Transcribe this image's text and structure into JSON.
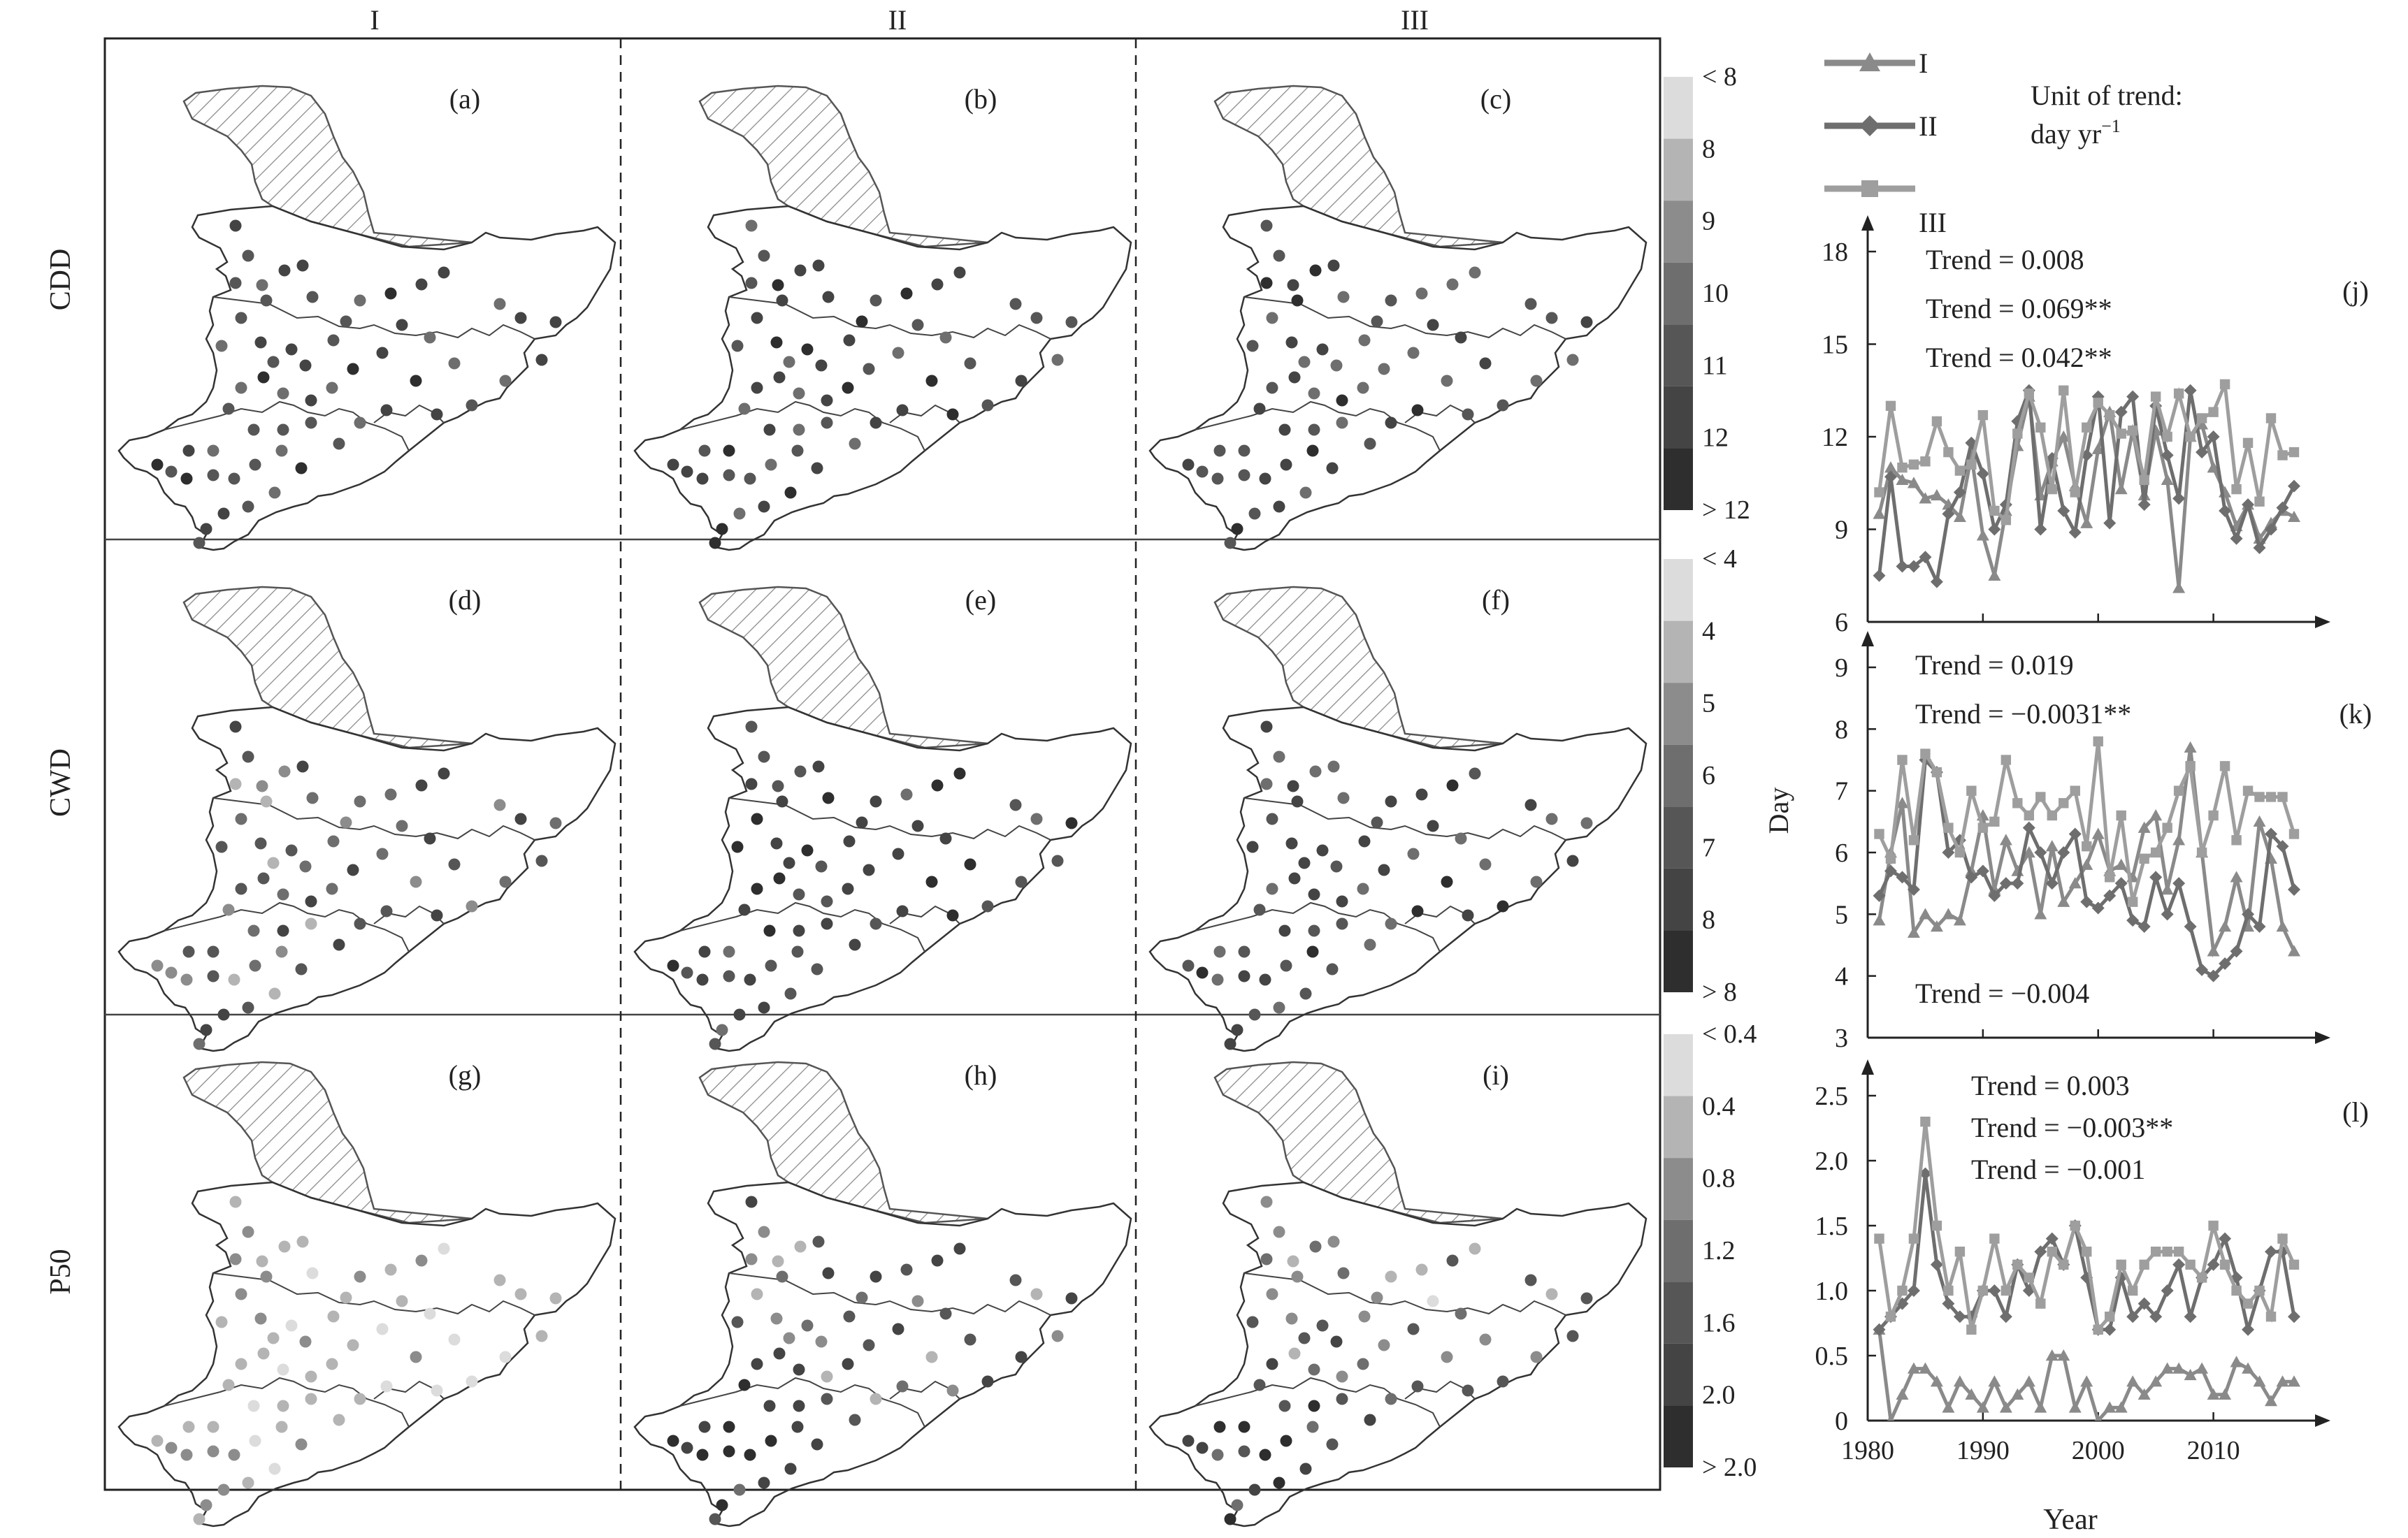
{
  "columns": [
    "I",
    "II",
    "III"
  ],
  "rows": [
    "CDD",
    "CWD",
    "P50"
  ],
  "panel_labels": [
    "(a)",
    "(b)",
    "(c)",
    "(d)",
    "(e)",
    "(f)",
    "(g)",
    "(h)",
    "(i)"
  ],
  "legends": [
    {
      "labels": [
        "< 8",
        "8",
        "9",
        "10",
        "11",
        "12",
        "> 12"
      ],
      "colors": [
        "#dcdcdc",
        "#b4b4b4",
        "#8c8c8c",
        "#6e6e6e",
        "#565656",
        "#444444",
        "#2e2e2e"
      ]
    },
    {
      "labels": [
        "< 4",
        "4",
        "5",
        "6",
        "7",
        "8",
        "> 8"
      ],
      "colors": [
        "#dcdcdc",
        "#b4b4b4",
        "#8c8c8c",
        "#6e6e6e",
        "#565656",
        "#444444",
        "#2e2e2e"
      ]
    },
    {
      "labels": [
        "< 0.4",
        "0.4",
        "0.8",
        "1.2",
        "1.6",
        "2.0",
        "> 2.0"
      ],
      "colors": [
        "#dcdcdc",
        "#b4b4b4",
        "#8c8c8c",
        "#6e6e6e",
        "#565656",
        "#444444",
        "#2e2e2e"
      ]
    }
  ],
  "series_legend": {
    "entries": [
      {
        "name": "I",
        "marker": "triangle",
        "color": "#8a8a8a"
      },
      {
        "name": "II",
        "marker": "diamond",
        "color": "#6e6e6e"
      },
      {
        "name": "III",
        "marker": "square",
        "color": "#9e9e9e"
      }
    ],
    "unit_line1": "Unit of trend:",
    "unit_line2": "day yr",
    "unit_sup": "−1"
  },
  "y_axis_label": "Day",
  "x_axis_label": "Year",
  "chart_data": [
    {
      "type": "line",
      "panel": "(j)",
      "x": [
        1981,
        1982,
        1983,
        1984,
        1985,
        1986,
        1987,
        1988,
        1989,
        1990,
        1991,
        1992,
        1993,
        1994,
        1995,
        1996,
        1997,
        1998,
        1999,
        2000,
        2001,
        2002,
        2003,
        2004,
        2005,
        2006,
        2007,
        2008,
        2009,
        2010,
        2011,
        2012,
        2013,
        2014,
        2015,
        2016,
        2017
      ],
      "xlim": [
        1980,
        2017
      ],
      "ylim": [
        6,
        18
      ],
      "yticks": [
        6,
        9,
        12,
        15,
        18
      ],
      "xticks": [
        1980,
        1990,
        2000,
        2010
      ],
      "annotations": [
        "Trend = 0.008",
        "Trend = 0.069**",
        "Trend = 0.042**"
      ],
      "series": [
        {
          "name": "I",
          "values": [
            9.5,
            11.0,
            10.6,
            10.5,
            10.0,
            10.1,
            9.8,
            9.4,
            11.4,
            8.8,
            7.5,
            9.6,
            11.7,
            13.3,
            10.1,
            11.2,
            12.0,
            10.4,
            9.2,
            11.6,
            12.8,
            10.3,
            12.2,
            10.1,
            12.2,
            10.6,
            7.1,
            12.0,
            12.4,
            11.0,
            10.2,
            9.1,
            9.8,
            8.7,
            9.2,
            9.6,
            9.4
          ]
        },
        {
          "name": "II",
          "values": [
            7.5,
            10.7,
            7.8,
            7.8,
            8.1,
            7.3,
            9.5,
            10.2,
            11.8,
            10.8,
            9.0,
            9.8,
            12.5,
            13.5,
            9.0,
            11.3,
            9.6,
            8.9,
            11.4,
            13.3,
            9.2,
            12.8,
            13.3,
            9.8,
            13.0,
            11.4,
            10.0,
            13.5,
            11.5,
            12.0,
            9.6,
            8.7,
            9.8,
            8.4,
            9.0,
            9.7,
            10.4
          ]
        },
        {
          "name": "III",
          "values": [
            10.2,
            13.0,
            11.0,
            11.1,
            11.2,
            12.5,
            11.5,
            10.9,
            11.1,
            12.7,
            9.6,
            9.3,
            12.1,
            13.4,
            12.3,
            10.3,
            13.5,
            10.2,
            12.3,
            13.1,
            12.7,
            12.1,
            12.2,
            10.6,
            13.3,
            12.0,
            13.4,
            12.0,
            12.6,
            12.8,
            13.7,
            10.3,
            11.8,
            9.9,
            12.6,
            11.4,
            11.5
          ]
        }
      ]
    },
    {
      "type": "line",
      "panel": "(k)",
      "x": [
        1981,
        1982,
        1983,
        1984,
        1985,
        1986,
        1987,
        1988,
        1989,
        1990,
        1991,
        1992,
        1993,
        1994,
        1995,
        1996,
        1997,
        1998,
        1999,
        2000,
        2001,
        2002,
        2003,
        2004,
        2005,
        2006,
        2007,
        2008,
        2009,
        2010,
        2011,
        2012,
        2013,
        2014,
        2015,
        2016,
        2017
      ],
      "xlim": [
        1980,
        2017
      ],
      "ylim": [
        3,
        9
      ],
      "yticks": [
        3,
        4,
        5,
        6,
        7,
        8,
        9
      ],
      "xticks": [
        1980,
        1990,
        2000,
        2010
      ],
      "annotations": [
        "Trend = 0.019",
        "Trend = −0.0031**",
        "Trend = −0.004"
      ],
      "series": [
        {
          "name": "I",
          "values": [
            4.9,
            6.0,
            6.8,
            4.7,
            5.0,
            4.8,
            5.0,
            4.9,
            5.7,
            6.6,
            5.4,
            6.2,
            5.7,
            6.0,
            5.0,
            6.1,
            5.2,
            5.5,
            5.8,
            6.3,
            5.7,
            5.8,
            5.6,
            6.4,
            6.6,
            5.4,
            6.2,
            7.7,
            6.0,
            4.4,
            4.8,
            5.6,
            4.8,
            6.5,
            5.9,
            4.8,
            4.4
          ]
        },
        {
          "name": "II",
          "values": [
            5.3,
            5.7,
            5.6,
            5.4,
            7.5,
            7.3,
            6.0,
            6.2,
            5.6,
            5.7,
            5.3,
            5.5,
            5.5,
            6.4,
            6.0,
            5.5,
            6.0,
            6.3,
            5.2,
            5.1,
            5.3,
            5.5,
            4.9,
            4.8,
            5.6,
            5.0,
            5.5,
            4.8,
            4.1,
            4.0,
            4.2,
            4.4,
            5.0,
            4.8,
            6.3,
            6.1,
            5.4
          ]
        },
        {
          "name": "III",
          "values": [
            6.3,
            5.9,
            7.5,
            6.2,
            7.6,
            7.3,
            6.4,
            6.0,
            7.0,
            6.4,
            6.5,
            7.5,
            6.8,
            6.6,
            6.9,
            6.6,
            6.8,
            7.0,
            6.1,
            7.8,
            5.6,
            6.6,
            5.2,
            5.9,
            6.0,
            6.4,
            7.0,
            7.4,
            6.0,
            6.6,
            7.4,
            6.2,
            7.0,
            6.9,
            6.9,
            6.9,
            6.3
          ]
        }
      ]
    },
    {
      "type": "line",
      "panel": "(l)",
      "x": [
        1981,
        1982,
        1983,
        1984,
        1985,
        1986,
        1987,
        1988,
        1989,
        1990,
        1991,
        1992,
        1993,
        1994,
        1995,
        1996,
        1997,
        1998,
        1999,
        2000,
        2001,
        2002,
        2003,
        2004,
        2005,
        2006,
        2007,
        2008,
        2009,
        2010,
        2011,
        2012,
        2013,
        2014,
        2015,
        2016,
        2017
      ],
      "xlim": [
        1980,
        2017
      ],
      "ylim": [
        0,
        2.5
      ],
      "yticks": [
        0,
        0.5,
        1.0,
        1.5,
        2.0,
        2.5
      ],
      "xticks": [
        1980,
        1990,
        2000,
        2010
      ],
      "annotations": [
        "Trend = 0.003",
        "Trend = −0.003**",
        "Trend = −0.001"
      ],
      "series": [
        {
          "name": "I",
          "values": [
            0.7,
            0.0,
            0.2,
            0.4,
            0.4,
            0.3,
            0.1,
            0.3,
            0.2,
            0.1,
            0.3,
            0.1,
            0.2,
            0.3,
            0.1,
            0.5,
            0.5,
            0.1,
            0.3,
            0.0,
            0.1,
            0.1,
            0.3,
            0.2,
            0.3,
            0.4,
            0.4,
            0.35,
            0.4,
            0.2,
            0.2,
            0.45,
            0.4,
            0.3,
            0.15,
            0.3,
            0.3
          ]
        },
        {
          "name": "II",
          "values": [
            0.7,
            0.8,
            0.9,
            1.0,
            1.9,
            1.2,
            0.9,
            0.8,
            0.8,
            1.0,
            1.0,
            0.8,
            1.2,
            1.0,
            1.3,
            1.4,
            1.2,
            1.5,
            1.1,
            0.7,
            0.7,
            1.1,
            0.8,
            0.9,
            0.8,
            1.0,
            1.2,
            0.8,
            1.1,
            1.2,
            1.4,
            1.1,
            0.7,
            1.0,
            1.3,
            1.3,
            0.8
          ]
        },
        {
          "name": "III",
          "values": [
            1.4,
            0.8,
            1.0,
            1.4,
            2.3,
            1.5,
            1.0,
            1.3,
            0.7,
            1.0,
            1.4,
            1.0,
            1.2,
            1.1,
            0.9,
            1.3,
            1.2,
            1.5,
            1.3,
            0.7,
            0.8,
            1.2,
            1.0,
            1.2,
            1.3,
            1.3,
            1.3,
            1.2,
            1.1,
            1.5,
            1.2,
            1.0,
            0.9,
            1.0,
            0.8,
            1.4,
            1.2
          ]
        }
      ]
    }
  ]
}
